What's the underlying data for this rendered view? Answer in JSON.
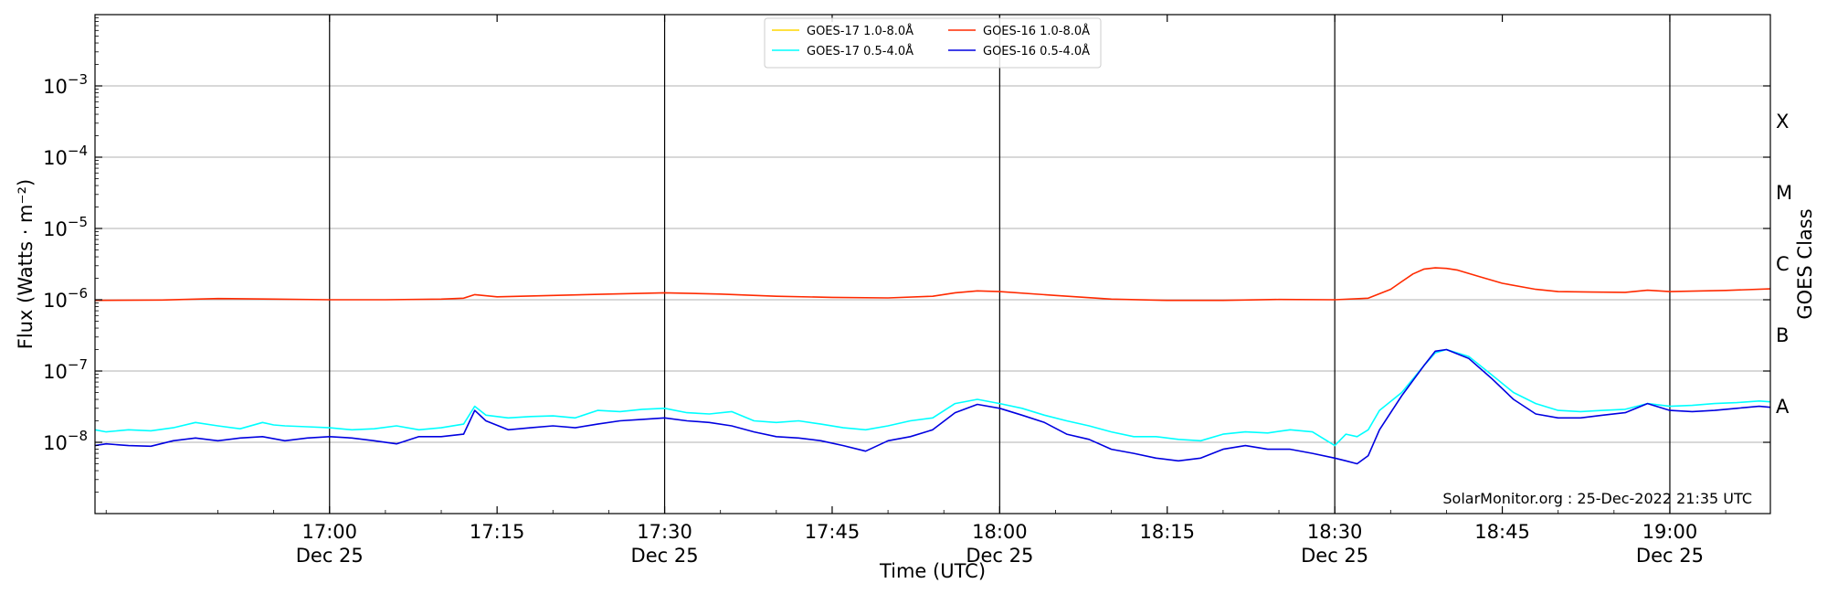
{
  "chart_data": {
    "type": "line",
    "xlabel": "Time (UTC)",
    "ylabel": "Flux (Watts · m⁻²)",
    "ylabel2": "GOES Class",
    "yscale": "log",
    "ylim": [
      1e-09,
      0.01
    ],
    "xlim": [
      "16:39",
      "19:09"
    ],
    "x_ticks": [
      {
        "time": "17:00",
        "label": "17:00",
        "date": "Dec 25"
      },
      {
        "time": "17:15",
        "label": "17:15",
        "date": ""
      },
      {
        "time": "17:30",
        "label": "17:30",
        "date": "Dec 25"
      },
      {
        "time": "17:45",
        "label": "17:45",
        "date": ""
      },
      {
        "time": "18:00",
        "label": "18:00",
        "date": "Dec 25"
      },
      {
        "time": "18:15",
        "label": "18:15",
        "date": ""
      },
      {
        "time": "18:30",
        "label": "18:30",
        "date": "Dec 25"
      },
      {
        "time": "18:45",
        "label": "18:45",
        "date": ""
      },
      {
        "time": "19:00",
        "label": "19:00",
        "date": "Dec 25"
      }
    ],
    "y_ticks": [
      {
        "value": 1e-08,
        "base": "10",
        "exp": "−8"
      },
      {
        "value": 1e-07,
        "base": "10",
        "exp": "−7"
      },
      {
        "value": 1e-06,
        "base": "10",
        "exp": "−6"
      },
      {
        "value": 1e-05,
        "base": "10",
        "exp": "−5"
      },
      {
        "value": 0.0001,
        "base": "10",
        "exp": "−4"
      },
      {
        "value": 0.001,
        "base": "10",
        "exp": "−3"
      }
    ],
    "class_labels": [
      {
        "label": "A",
        "value": 1e-08
      },
      {
        "label": "B",
        "value": 1e-07
      },
      {
        "label": "C",
        "value": 1e-06
      },
      {
        "label": "M",
        "value": 1e-05
      },
      {
        "label": "X",
        "value": 0.0001
      }
    ],
    "vlines": [
      "17:00",
      "17:30",
      "18:00",
      "18:30",
      "19:00"
    ],
    "grid": {
      "horizontal": true,
      "vertical_at_half_hours": true
    },
    "legend": {
      "placement": "top-center",
      "columns": 2
    },
    "annotation": "SolarMonitor.org : 25-Dec-2022 21:35 UTC",
    "series": [
      {
        "name": "GOES-17 1.0-8.0Å",
        "color": "#ffd700",
        "x": [],
        "values": []
      },
      {
        "name": "GOES-16 1.0-8.0Å",
        "color": "#ff2a00",
        "x": [
          "16:39",
          "16:45",
          "16:50",
          "16:55",
          "17:00",
          "17:05",
          "17:10",
          "17:12",
          "17:13",
          "17:15",
          "17:20",
          "17:25",
          "17:30",
          "17:35",
          "17:40",
          "17:45",
          "17:50",
          "17:54",
          "17:56",
          "17:58",
          "18:00",
          "18:05",
          "18:10",
          "18:15",
          "18:20",
          "18:25",
          "18:30",
          "18:33",
          "18:35",
          "18:36",
          "18:37",
          "18:38",
          "18:39",
          "18:40",
          "18:41",
          "18:43",
          "18:45",
          "18:48",
          "18:50",
          "18:53",
          "18:56",
          "18:58",
          "19:00",
          "19:05",
          "19:09"
        ],
        "values": [
          9.8e-07,
          9.9e-07,
          1.04e-06,
          1.02e-06,
          1e-06,
          1e-06,
          1.02e-06,
          1.05e-06,
          1.18e-06,
          1.1e-06,
          1.15e-06,
          1.2e-06,
          1.25e-06,
          1.2e-06,
          1.12e-06,
          1.08e-06,
          1.06e-06,
          1.12e-06,
          1.25e-06,
          1.33e-06,
          1.3e-06,
          1.15e-06,
          1.02e-06,
          9.8e-07,
          9.8e-07,
          1.01e-06,
          1e-06,
          1.05e-06,
          1.4e-06,
          1.8e-06,
          2.3e-06,
          2.7e-06,
          2.8e-06,
          2.75e-06,
          2.6e-06,
          2.1e-06,
          1.7e-06,
          1.4e-06,
          1.3e-06,
          1.28e-06,
          1.27e-06,
          1.36e-06,
          1.3e-06,
          1.35e-06,
          1.42e-06
        ]
      },
      {
        "name": "GOES-17 0.5-4.0Å",
        "color": "#00ffff",
        "x": [
          "16:39",
          "16:40",
          "16:42",
          "16:44",
          "16:46",
          "16:48",
          "16:50",
          "16:52",
          "16:54",
          "16:55",
          "16:56",
          "16:58",
          "17:00",
          "17:02",
          "17:04",
          "17:06",
          "17:08",
          "17:10",
          "17:12",
          "17:13",
          "17:14",
          "17:16",
          "17:18",
          "17:20",
          "17:22",
          "17:24",
          "17:26",
          "17:28",
          "17:30",
          "17:32",
          "17:34",
          "17:36",
          "17:38",
          "17:40",
          "17:42",
          "17:44",
          "17:46",
          "17:48",
          "17:50",
          "17:52",
          "17:54",
          "17:56",
          "17:58",
          "18:00",
          "18:02",
          "18:04",
          "18:06",
          "18:08",
          "18:10",
          "18:12",
          "18:14",
          "18:16",
          "18:18",
          "18:20",
          "18:22",
          "18:24",
          "18:26",
          "18:28",
          "18:30",
          "18:31",
          "18:32",
          "18:33",
          "18:34",
          "18:36",
          "18:38",
          "18:39",
          "18:40",
          "18:42",
          "18:44",
          "18:46",
          "18:48",
          "18:50",
          "18:52",
          "18:54",
          "18:56",
          "18:58",
          "19:00",
          "19:02",
          "19:04",
          "19:06",
          "19:08",
          "19:09"
        ],
        "values": [
          1.5e-08,
          1.4e-08,
          1.5e-08,
          1.45e-08,
          1.6e-08,
          1.9e-08,
          1.7e-08,
          1.55e-08,
          1.9e-08,
          1.75e-08,
          1.7e-08,
          1.65e-08,
          1.6e-08,
          1.5e-08,
          1.55e-08,
          1.7e-08,
          1.5e-08,
          1.6e-08,
          1.8e-08,
          3.2e-08,
          2.4e-08,
          2.2e-08,
          2.3e-08,
          2.35e-08,
          2.2e-08,
          2.8e-08,
          2.7e-08,
          2.9e-08,
          3e-08,
          2.6e-08,
          2.5e-08,
          2.7e-08,
          2e-08,
          1.9e-08,
          2e-08,
          1.8e-08,
          1.6e-08,
          1.5e-08,
          1.7e-08,
          2e-08,
          2.2e-08,
          3.5e-08,
          4e-08,
          3.5e-08,
          3e-08,
          2.4e-08,
          2e-08,
          1.7e-08,
          1.4e-08,
          1.2e-08,
          1.2e-08,
          1.1e-08,
          1.05e-08,
          1.3e-08,
          1.4e-08,
          1.35e-08,
          1.5e-08,
          1.4e-08,
          9e-09,
          1.3e-08,
          1.2e-08,
          1.5e-08,
          2.8e-08,
          5e-08,
          1.2e-07,
          1.8e-07,
          2e-07,
          1.6e-07,
          9e-08,
          5e-08,
          3.5e-08,
          2.8e-08,
          2.7e-08,
          2.8e-08,
          2.9e-08,
          3.5e-08,
          3.2e-08,
          3.3e-08,
          3.5e-08,
          3.6e-08,
          3.8e-08,
          3.7e-08
        ]
      },
      {
        "name": "GOES-16 0.5-4.0Å",
        "color": "#0000e0",
        "x": [
          "16:39",
          "16:40",
          "16:42",
          "16:44",
          "16:46",
          "16:48",
          "16:50",
          "16:52",
          "16:54",
          "16:56",
          "16:58",
          "17:00",
          "17:02",
          "17:04",
          "17:06",
          "17:08",
          "17:10",
          "17:12",
          "17:13",
          "17:14",
          "17:16",
          "17:18",
          "17:20",
          "17:22",
          "17:24",
          "17:26",
          "17:28",
          "17:30",
          "17:32",
          "17:34",
          "17:36",
          "17:38",
          "17:40",
          "17:42",
          "17:44",
          "17:46",
          "17:48",
          "17:50",
          "17:52",
          "17:54",
          "17:56",
          "17:58",
          "18:00",
          "18:02",
          "18:04",
          "18:06",
          "18:08",
          "18:10",
          "18:12",
          "18:14",
          "18:16",
          "18:18",
          "18:20",
          "18:22",
          "18:24",
          "18:26",
          "18:28",
          "18:30",
          "18:31",
          "18:32",
          "18:33",
          "18:34",
          "18:36",
          "18:38",
          "18:39",
          "18:40",
          "18:42",
          "18:44",
          "18:46",
          "18:48",
          "18:50",
          "18:52",
          "18:54",
          "18:56",
          "18:58",
          "19:00",
          "19:02",
          "19:04",
          "19:06",
          "19:08",
          "19:09"
        ],
        "values": [
          9e-09,
          9.5e-09,
          9e-09,
          8.8e-09,
          1.05e-08,
          1.15e-08,
          1.05e-08,
          1.15e-08,
          1.2e-08,
          1.05e-08,
          1.15e-08,
          1.2e-08,
          1.15e-08,
          1.05e-08,
          9.5e-09,
          1.2e-08,
          1.2e-08,
          1.3e-08,
          2.8e-08,
          2e-08,
          1.5e-08,
          1.6e-08,
          1.7e-08,
          1.6e-08,
          1.8e-08,
          2e-08,
          2.1e-08,
          2.2e-08,
          2e-08,
          1.9e-08,
          1.7e-08,
          1.4e-08,
          1.2e-08,
          1.15e-08,
          1.05e-08,
          9e-09,
          7.5e-09,
          1.05e-08,
          1.2e-08,
          1.5e-08,
          2.6e-08,
          3.4e-08,
          3e-08,
          2.4e-08,
          1.9e-08,
          1.3e-08,
          1.1e-08,
          8e-09,
          7e-09,
          6e-09,
          5.5e-09,
          6e-09,
          8e-09,
          9e-09,
          8e-09,
          8e-09,
          7e-09,
          6e-09,
          5.5e-09,
          5e-09,
          6.5e-09,
          1.5e-08,
          4.5e-08,
          1.2e-07,
          1.9e-07,
          2e-07,
          1.5e-07,
          8e-08,
          4e-08,
          2.5e-08,
          2.2e-08,
          2.2e-08,
          2.4e-08,
          2.6e-08,
          3.5e-08,
          2.8e-08,
          2.7e-08,
          2.8e-08,
          3e-08,
          3.2e-08,
          3.1e-08
        ]
      }
    ]
  }
}
